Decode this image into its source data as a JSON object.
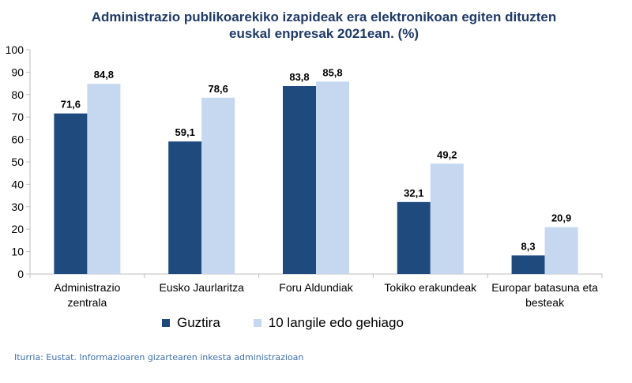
{
  "chart_data": {
    "type": "bar",
    "title_line1": "Administrazio publikoarekiko izapideak era elektronikoan egiten dituzten",
    "title_line2": "euskal enpresak 2021ean. (%)",
    "categories": [
      [
        "Administrazio",
        "zentrala"
      ],
      [
        "Eusko Jaurlaritza"
      ],
      [
        "Foru Aldundiak"
      ],
      [
        "Tokiko erakundeak"
      ],
      [
        "Europar batasuna eta",
        "besteak"
      ]
    ],
    "series": [
      {
        "name": "Guztira",
        "color": "#1f4a7e",
        "values": [
          71.6,
          59.1,
          83.8,
          32.1,
          8.3
        ],
        "labels": [
          "71,6",
          "59,1",
          "83,8",
          "32,1",
          "8,3"
        ]
      },
      {
        "name": "10 langile edo gehiago",
        "color": "#c5d8f0",
        "values": [
          84.8,
          78.6,
          85.8,
          49.2,
          20.9
        ],
        "labels": [
          "84,8",
          "78,6",
          "85,8",
          "49,2",
          "20,9"
        ]
      }
    ],
    "ylim": [
      0,
      100
    ],
    "yticks": [
      0,
      10,
      20,
      30,
      40,
      50,
      60,
      70,
      80,
      90,
      100
    ],
    "grid": false,
    "legend_position": "bottom"
  },
  "source": "Iturria: Eustat. Informazioaren gizartearen inkesta administrazioan"
}
